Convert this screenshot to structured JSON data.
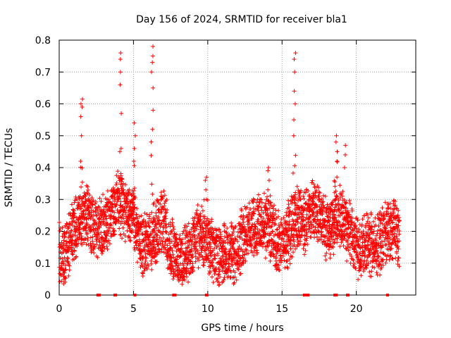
{
  "chart_data": {
    "type": "scatter",
    "title": "Day 156 of 2024, SRMTID for receiver bla1",
    "xlabel": "GPS time / hours",
    "ylabel": "SRMTID / TECUs",
    "xlim": [
      0,
      24
    ],
    "ylim": [
      0,
      0.8
    ],
    "grid": true,
    "marker": "+",
    "color": "#ff0000",
    "x_ticks": [
      0,
      5,
      10,
      15,
      20
    ],
    "x_tick_labels": [
      "0",
      "5",
      "10",
      "15",
      "20"
    ],
    "y_ticks": [
      0,
      0.1,
      0.2,
      0.3,
      0.4,
      0.5,
      0.6,
      0.7,
      0.8
    ],
    "y_tick_labels": [
      "0",
      "0.1",
      "0.2",
      "0.3",
      "0.4",
      "0.5",
      "0.6",
      "0.7",
      "0.8"
    ],
    "profile": {
      "x": [
        0.0,
        0.3,
        0.7,
        1.2,
        1.6,
        2.0,
        2.5,
        3.0,
        3.5,
        4.0,
        4.5,
        5.0,
        5.5,
        6.0,
        6.5,
        7.0,
        7.5,
        8.0,
        8.5,
        9.0,
        9.5,
        10.0,
        10.5,
        11.0,
        11.5,
        12.0,
        12.5,
        13.0,
        13.5,
        14.0,
        14.5,
        15.0,
        15.5,
        16.0,
        16.5,
        17.0,
        17.5,
        18.0,
        18.5,
        19.0,
        19.5,
        20.0,
        20.5,
        21.0,
        21.5,
        22.0,
        22.5,
        22.9
      ],
      "y": [
        0.14,
        0.13,
        0.17,
        0.22,
        0.24,
        0.25,
        0.2,
        0.22,
        0.25,
        0.3,
        0.26,
        0.25,
        0.15,
        0.16,
        0.2,
        0.24,
        0.15,
        0.1,
        0.12,
        0.16,
        0.2,
        0.17,
        0.12,
        0.13,
        0.13,
        0.14,
        0.2,
        0.22,
        0.21,
        0.22,
        0.18,
        0.15,
        0.2,
        0.25,
        0.22,
        0.28,
        0.25,
        0.2,
        0.23,
        0.25,
        0.2,
        0.15,
        0.15,
        0.16,
        0.16,
        0.2,
        0.21,
        0.19
      ]
    },
    "spikes": [
      {
        "x": 1.5,
        "values": [
          0.42,
          0.5,
          0.56,
          0.59,
          0.6,
          0.615
        ]
      },
      {
        "x": 4.15,
        "values": [
          0.46,
          0.57,
          0.66,
          0.7,
          0.74,
          0.76
        ]
      },
      {
        "x": 6.25,
        "values": [
          0.52,
          0.58,
          0.65,
          0.7,
          0.73,
          0.75,
          0.78
        ]
      },
      {
        "x": 5.05,
        "values": [
          0.42,
          0.46,
          0.5,
          0.54
        ]
      },
      {
        "x": 15.85,
        "values": [
          0.5,
          0.55,
          0.6,
          0.64,
          0.7,
          0.74,
          0.76
        ]
      },
      {
        "x": 18.65,
        "values": [
          0.42,
          0.45,
          0.48,
          0.5
        ]
      },
      {
        "x": 19.2,
        "values": [
          0.4,
          0.44,
          0.47
        ]
      },
      {
        "x": 9.9,
        "values": [
          0.3,
          0.33,
          0.36,
          0.37
        ]
      },
      {
        "x": 14.1,
        "values": [
          0.33,
          0.36,
          0.39,
          0.4
        ]
      }
    ],
    "zero_markers_x": [
      2.6,
      2.7,
      3.75,
      3.8,
      5.1,
      7.7,
      7.8,
      9.9,
      9.95,
      16.5,
      16.55,
      16.6,
      16.7,
      16.75,
      18.55,
      18.65,
      19.4,
      19.45,
      22.1
    ],
    "dip_points": [
      {
        "x": 0.3,
        "y": 0.035
      },
      {
        "x": 0.32,
        "y": 0.05
      },
      {
        "x": 0.35,
        "y": 0.07
      }
    ]
  }
}
